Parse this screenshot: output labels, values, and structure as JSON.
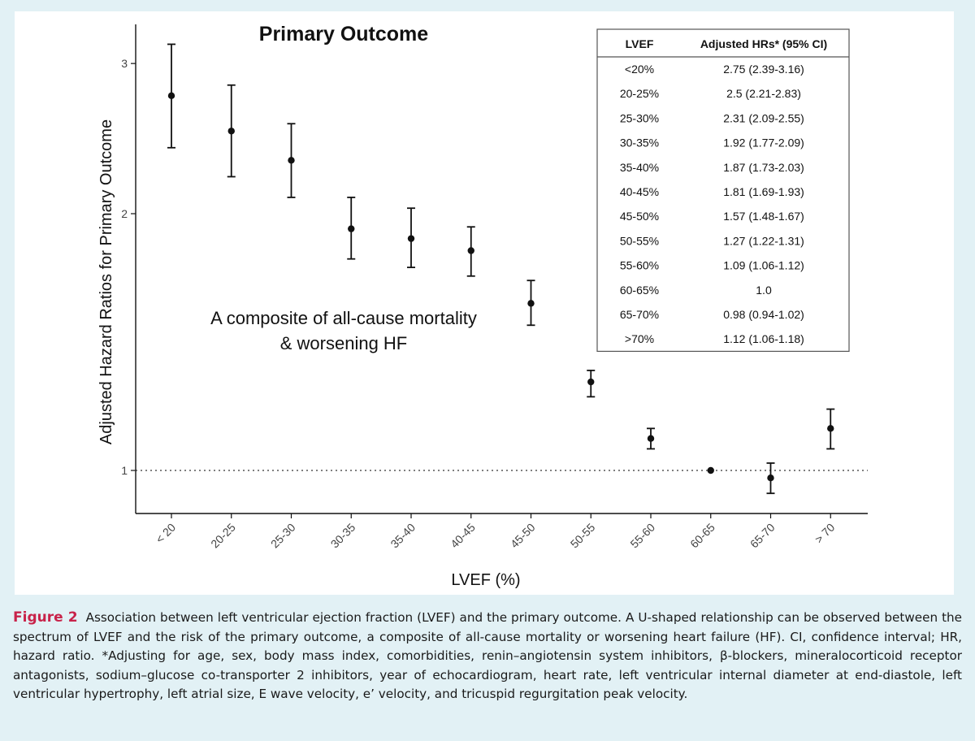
{
  "chart_data": {
    "type": "errorbar",
    "title": "Primary Outcome",
    "xlabel": "LVEF (%)",
    "ylabel": "Adjusted Hazard Ratios for Primary Outcome",
    "y_scale": "log",
    "ylim": [
      0.92,
      3.25
    ],
    "yticks": [
      1,
      2,
      3
    ],
    "reference_line": 1,
    "categories": [
      "< 20",
      "20-25",
      "25-30",
      "30-35",
      "35-40",
      "40-45",
      "45-50",
      "50-55",
      "55-60",
      "60-65",
      "65-70",
      "> 70"
    ],
    "points": [
      {
        "category": "< 20",
        "hr": 2.75,
        "lower": 2.39,
        "upper": 3.16
      },
      {
        "category": "20-25",
        "hr": 2.5,
        "lower": 2.21,
        "upper": 2.83
      },
      {
        "category": "25-30",
        "hr": 2.31,
        "lower": 2.09,
        "upper": 2.55
      },
      {
        "category": "30-35",
        "hr": 1.92,
        "lower": 1.77,
        "upper": 2.09
      },
      {
        "category": "35-40",
        "hr": 1.87,
        "lower": 1.73,
        "upper": 2.03
      },
      {
        "category": "40-45",
        "hr": 1.81,
        "lower": 1.69,
        "upper": 1.93
      },
      {
        "category": "45-50",
        "hr": 1.57,
        "lower": 1.48,
        "upper": 1.67
      },
      {
        "category": "50-55",
        "hr": 1.27,
        "lower": 1.22,
        "upper": 1.31
      },
      {
        "category": "55-60",
        "hr": 1.09,
        "lower": 1.06,
        "upper": 1.12
      },
      {
        "category": "60-65",
        "hr": 1.0,
        "lower": 1.0,
        "upper": 1.0
      },
      {
        "category": "65-70",
        "hr": 0.98,
        "lower": 0.94,
        "upper": 1.02
      },
      {
        "category": "> 70",
        "hr": 1.12,
        "lower": 1.06,
        "upper": 1.18
      }
    ],
    "annotation": [
      "A composite of all-cause mortality",
      "& worsening HF"
    ],
    "table": {
      "headers": [
        "LVEF",
        "Adjusted HRs* (95% CI)"
      ],
      "rows": [
        [
          "<20%",
          "2.75 (2.39-3.16)"
        ],
        [
          "20-25%",
          "2.5 (2.21-2.83)"
        ],
        [
          "25-30%",
          "2.31 (2.09-2.55)"
        ],
        [
          "30-35%",
          "1.92 (1.77-2.09)"
        ],
        [
          "35-40%",
          "1.87 (1.73-2.03)"
        ],
        [
          "40-45%",
          "1.81 (1.69-1.93)"
        ],
        [
          "45-50%",
          "1.57 (1.48-1.67)"
        ],
        [
          "50-55%",
          "1.27 (1.22-1.31)"
        ],
        [
          "55-60%",
          "1.09 (1.06-1.12)"
        ],
        [
          "60-65%",
          "1.0"
        ],
        [
          "65-70%",
          "0.98 (0.94-1.02)"
        ],
        [
          ">70%",
          "1.12 (1.06-1.18)"
        ]
      ]
    }
  },
  "caption": {
    "label": "Figure 2",
    "text": "Association between left ventricular ejection fraction (LVEF) and the primary outcome. A U-shaped relationship can be observed between the spectrum of LVEF and the risk of the primary outcome, a composite of all-cause mortality or worsening heart failure (HF). CI, confidence interval; HR, hazard ratio. *Adjusting for age, sex, body mass index, comorbidities, renin–angiotensin system inhibitors, β-blockers, mineralocorticoid receptor antagonists, sodium–glucose co-transporter 2 inhibitors, year of echocardiogram, heart rate, left ventricular internal diameter at end-diastole, left ventricular hypertrophy, left atrial size, E wave velocity, e’ velocity, and tricuspid regurgitation peak velocity."
  },
  "colors": {
    "page_background": "#e2f1f5",
    "panel_background": "#ffffff",
    "caption_label": "#c8234a",
    "ink": "#111111"
  }
}
